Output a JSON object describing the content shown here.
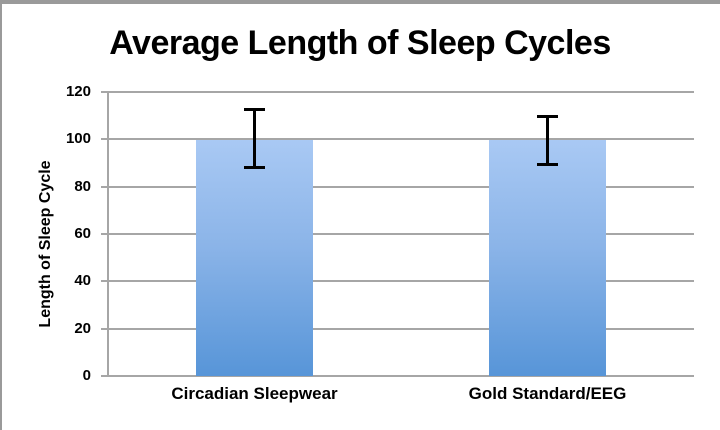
{
  "chart_data": {
    "type": "bar",
    "title": "Average Length of Sleep Cycles",
    "ylabel": "Length of Sleep Cycle",
    "xlabel": "",
    "categories": [
      "Circadian Sleepwear",
      "Gold Standard/EEG"
    ],
    "values": [
      100,
      100
    ],
    "error_bars": [
      {
        "upper": 113,
        "lower": 88
      },
      {
        "upper": 110,
        "lower": 89
      }
    ],
    "ylim": [
      0,
      120
    ],
    "yticks": [
      0,
      20,
      40,
      60,
      80,
      100,
      120
    ],
    "grid": "horizontal",
    "legend": "none",
    "colors": {
      "bar_gradient_top": "#a9c9f4",
      "bar_gradient_bottom": "#5795d8",
      "gridline": "#a6a6a6",
      "error_bar": "#000000",
      "text": "#000000",
      "background": "#ffffff",
      "frame_border": "#9a9a9a"
    }
  }
}
